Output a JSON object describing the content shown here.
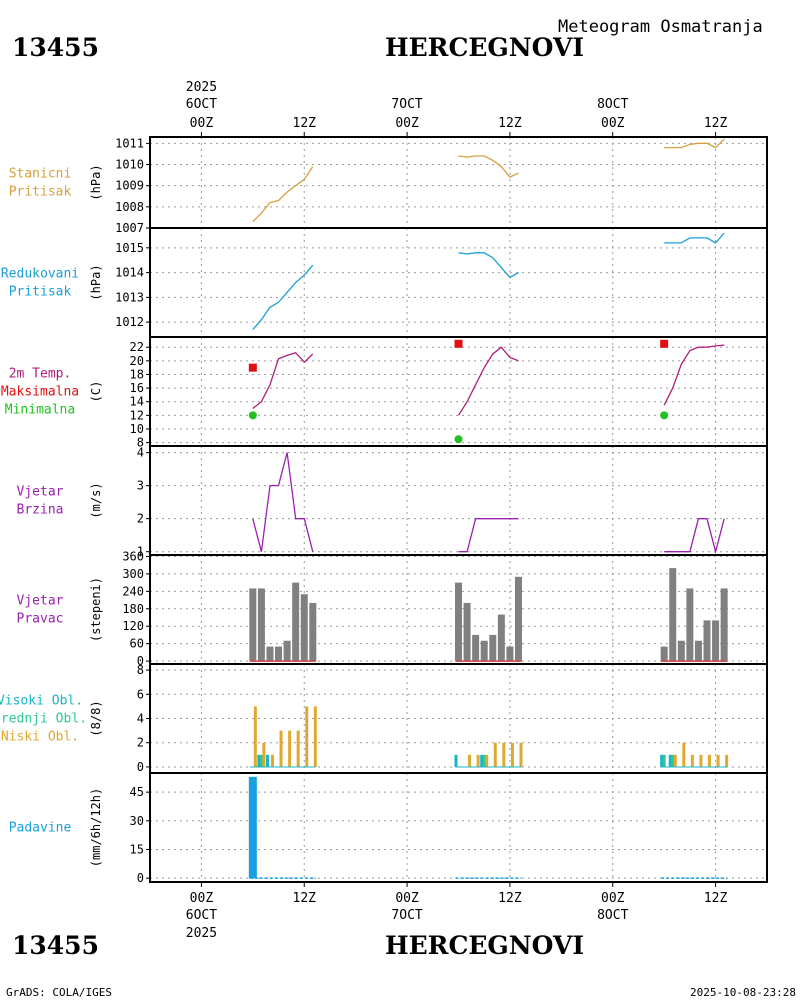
{
  "header": {
    "station_id": "13455",
    "station_name": "HERCEGNOVI",
    "subtitle": "Meteogram Osmatranja"
  },
  "footer": {
    "station_id": "13455",
    "station_name": "HERCEGNOVI",
    "credit": "GrADS: COLA/IGES",
    "timestamp": "2025-10-08-23:28"
  },
  "time_axis": {
    "hour_range": [
      -6,
      66
    ],
    "year_label": "2025",
    "ticks": [
      {
        "hour": 0,
        "label": "00Z",
        "date": "6OCT"
      },
      {
        "hour": 12,
        "label": "12Z",
        "date": ""
      },
      {
        "hour": 24,
        "label": "00Z",
        "date": "7OCT"
      },
      {
        "hour": 36,
        "label": "12Z",
        "date": ""
      },
      {
        "hour": 48,
        "label": "00Z",
        "date": "8OCT"
      },
      {
        "hour": 60,
        "label": "12Z",
        "date": ""
      }
    ]
  },
  "colors": {
    "station_pressure": "#d4a040",
    "reduced_pressure": "#1aa0d4",
    "temperature": "#b0207a",
    "tmax": "#e01010",
    "tmin": "#20c020",
    "wind_speed": "#9a20b0",
    "wind_dir_bar": "#808080",
    "wind_dir_base": "#d04040",
    "cloud_high": "#18b4c8",
    "cloud_mid": "#30c890",
    "cloud_low": "#e0a830",
    "precip": "#18a0e0"
  },
  "chart_data": [
    {
      "type": "line",
      "key": "station_pressure",
      "title_lines": [
        "Stanicni",
        "Pritisak"
      ],
      "ylabel": "(hPa)",
      "ylim": [
        1007,
        1011.3
      ],
      "yticks": [
        1007,
        1008,
        1009,
        1010,
        1011
      ],
      "segments": [
        {
          "x": [
            6,
            7,
            8,
            9,
            10,
            11,
            12,
            13
          ],
          "y": [
            1007.3,
            1007.7,
            1008.2,
            1008.3,
            1008.7,
            1009.0,
            1009.3,
            1009.9
          ]
        },
        {
          "x": [
            30,
            31,
            32,
            33,
            34,
            35,
            36,
            37
          ],
          "y": [
            1010.4,
            1010.35,
            1010.4,
            1010.4,
            1010.2,
            1009.9,
            1009.4,
            1009.6
          ]
        },
        {
          "x": [
            54,
            55,
            56,
            57,
            58,
            59,
            60,
            61
          ],
          "y": [
            1010.8,
            1010.8,
            1010.8,
            1010.95,
            1011.0,
            1011.0,
            1010.8,
            1011.2
          ]
        }
      ]
    },
    {
      "type": "line",
      "key": "reduced_pressure",
      "title_lines": [
        "Redukovani",
        "Pritisak"
      ],
      "ylabel": "(hPa)",
      "ylim": [
        1011.4,
        1015.8
      ],
      "yticks": [
        1012,
        1013,
        1014,
        1015
      ],
      "segments": [
        {
          "x": [
            6,
            7,
            8,
            9,
            10,
            11,
            12,
            13
          ],
          "y": [
            1011.7,
            1012.1,
            1012.6,
            1012.8,
            1013.2,
            1013.6,
            1013.9,
            1014.3
          ]
        },
        {
          "x": [
            30,
            31,
            32,
            33,
            34,
            35,
            36,
            37
          ],
          "y": [
            1014.8,
            1014.75,
            1014.8,
            1014.8,
            1014.6,
            1014.2,
            1013.8,
            1014.0
          ]
        },
        {
          "x": [
            54,
            55,
            56,
            57,
            58,
            59,
            60,
            61
          ],
          "y": [
            1015.2,
            1015.2,
            1015.2,
            1015.4,
            1015.4,
            1015.4,
            1015.2,
            1015.6
          ]
        }
      ]
    },
    {
      "type": "line",
      "key": "temperature",
      "title_lines": [
        "2m Temp.",
        "Maksimalna",
        "Minimalna"
      ],
      "ylabel": "(C)",
      "ylim": [
        7.5,
        23.5
      ],
      "yticks": [
        8,
        10,
        12,
        14,
        16,
        18,
        20,
        22
      ],
      "segments": [
        {
          "x": [
            6,
            7,
            8,
            9,
            10,
            11,
            12,
            13
          ],
          "y": [
            13.0,
            14.0,
            16.5,
            20.3,
            20.8,
            21.2,
            19.8,
            21.0
          ]
        },
        {
          "x": [
            30,
            31,
            32,
            33,
            34,
            35,
            36,
            37
          ],
          "y": [
            12.0,
            14.0,
            16.5,
            19.0,
            21.0,
            22.0,
            20.5,
            20.0
          ]
        },
        {
          "x": [
            54,
            55,
            56,
            57,
            58,
            59,
            60,
            61
          ],
          "y": [
            13.5,
            16.0,
            19.5,
            21.5,
            22.0,
            22.0,
            22.2,
            22.3
          ]
        }
      ],
      "tmax_points": [
        {
          "x": 6,
          "y": 19.0
        },
        {
          "x": 30,
          "y": 22.5
        },
        {
          "x": 54,
          "y": 22.5
        }
      ],
      "tmin_points": [
        {
          "x": 6,
          "y": 12.0
        },
        {
          "x": 30,
          "y": 8.5
        },
        {
          "x": 54,
          "y": 12.0
        }
      ]
    },
    {
      "type": "line",
      "key": "wind_speed",
      "title_lines": [
        "Vjetar",
        "Brzina"
      ],
      "ylabel": "(m/s)",
      "ylim": [
        0.9,
        4.2
      ],
      "yticks": [
        1,
        2,
        3,
        4
      ],
      "segments": [
        {
          "x": [
            6,
            7,
            8,
            9,
            10,
            11,
            12,
            13
          ],
          "y": [
            2,
            1,
            3,
            3,
            4,
            2,
            2,
            1
          ]
        },
        {
          "x": [
            30,
            31,
            32,
            33,
            34,
            35,
            36,
            37
          ],
          "y": [
            1,
            1,
            2,
            2,
            2,
            2,
            2,
            2
          ]
        },
        {
          "x": [
            54,
            55,
            56,
            57,
            58,
            59,
            60,
            61
          ],
          "y": [
            1,
            1,
            1,
            1,
            2,
            2,
            1,
            2
          ]
        }
      ]
    },
    {
      "type": "bar",
      "key": "wind_direction",
      "title_lines": [
        "Vjetar",
        "Pravac"
      ],
      "ylabel": "(stepeni)",
      "ylim": [
        -10,
        365
      ],
      "yticks": [
        0,
        60,
        120,
        180,
        240,
        300,
        360
      ],
      "ytick_labels": [
        "0",
        "60",
        "120",
        "180",
        "240",
        "300",
        "360"
      ],
      "x": [
        6,
        7,
        8,
        9,
        10,
        11,
        12,
        13,
        30,
        31,
        32,
        33,
        34,
        35,
        36,
        37,
        54,
        55,
        56,
        57,
        58,
        59,
        60,
        61
      ],
      "values": [
        250,
        250,
        50,
        50,
        70,
        270,
        230,
        200,
        270,
        200,
        90,
        70,
        90,
        160,
        50,
        290,
        50,
        320,
        70,
        250,
        70,
        140,
        140,
        250
      ]
    },
    {
      "type": "bar",
      "key": "clouds",
      "title_lines": [
        "Visoki Obl.",
        "Srednji Obl.",
        "Niski Obl."
      ],
      "ylabel": "(8/8)",
      "ylim": [
        -0.5,
        8.5
      ],
      "yticks": [
        0,
        2,
        4,
        6,
        8
      ],
      "x": [
        6,
        7,
        8,
        9,
        10,
        11,
        12,
        13,
        30,
        31,
        32,
        33,
        34,
        35,
        36,
        37,
        54,
        55,
        56,
        57,
        58,
        59,
        60,
        61
      ],
      "series": [
        {
          "name": "Visoki Obl.",
          "values": [
            0,
            1,
            1,
            0,
            0,
            0,
            0,
            0,
            1,
            0,
            0,
            1,
            0,
            0,
            0,
            0,
            1,
            1,
            0,
            0,
            0,
            0,
            0,
            0
          ]
        },
        {
          "name": "Srednji Obl.",
          "values": [
            0,
            1,
            0,
            0,
            0,
            0,
            0,
            0,
            0,
            0,
            0,
            1,
            0,
            0,
            0,
            0,
            1,
            1,
            0,
            0,
            0,
            0,
            0,
            0
          ]
        },
        {
          "name": "Niski Obl.",
          "values": [
            5,
            2,
            1,
            3,
            3,
            3,
            5,
            5,
            0,
            1,
            1,
            1,
            2,
            2,
            2,
            2,
            0,
            1,
            2,
            1,
            1,
            1,
            1,
            1
          ]
        }
      ]
    },
    {
      "type": "bar",
      "key": "precipitation",
      "title_lines": [
        "Padavine"
      ],
      "ylabel": "(mm/6h/12h)",
      "ylim": [
        -2,
        55
      ],
      "yticks": [
        0,
        15,
        30,
        45
      ],
      "x": [
        6,
        30,
        54
      ],
      "values": [
        53,
        0,
        0
      ]
    }
  ]
}
